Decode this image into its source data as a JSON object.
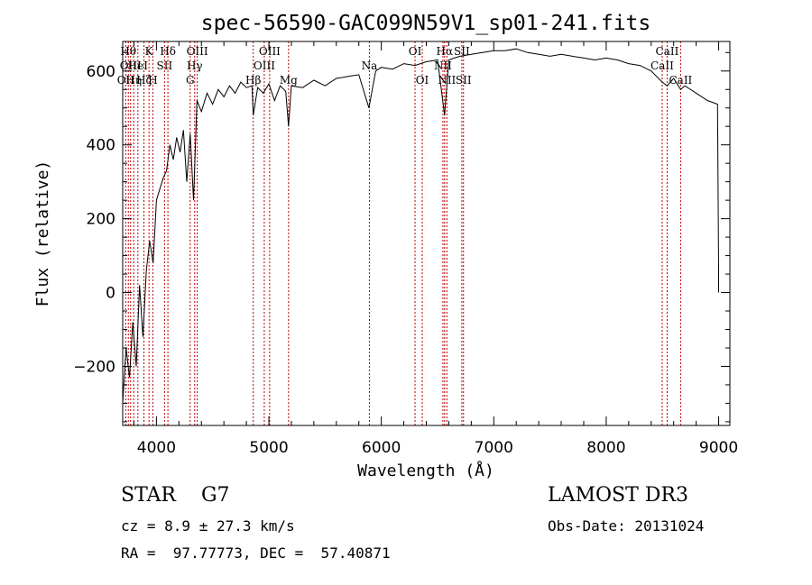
{
  "chart_data": {
    "type": "line",
    "title": "spec-56590-GAC099N59V1_sp01-241.fits",
    "xlabel": "Wavelength (Å)",
    "ylabel": "Flux (relative)",
    "xlim": [
      3700,
      9100
    ],
    "ylim": [
      -360,
      680
    ],
    "xticks": [
      4000,
      5000,
      6000,
      7000,
      8000,
      9000
    ],
    "yticks": [
      -200,
      0,
      200,
      400,
      600
    ],
    "grid": false,
    "series": [
      {
        "x": [
          3700,
          3730,
          3760,
          3790,
          3820,
          3850,
          3880,
          3910,
          3940,
          3970,
          4000,
          4030,
          4060,
          4090,
          4120,
          4150,
          4180,
          4210,
          4240,
          4270,
          4300,
          4330,
          4360,
          4400,
          4450,
          4500,
          4550,
          4600,
          4650,
          4700,
          4750,
          4800,
          4850,
          4861,
          4900,
          4950,
          5000,
          5050,
          5100,
          5150,
          5175,
          5200,
          5300,
          5400,
          5500,
          5600,
          5700,
          5800,
          5890,
          5950,
          6000,
          6100,
          6200,
          6300,
          6400,
          6500,
          6563,
          6600,
          6650,
          6700,
          6800,
          6900,
          7000,
          7100,
          7200,
          7300,
          7400,
          7500,
          7600,
          7700,
          7800,
          7900,
          8000,
          8100,
          8200,
          8300,
          8400,
          8498,
          8542,
          8600,
          8662,
          8700,
          8800,
          8900,
          8990,
          9000,
          9000
        ],
        "y": [
          -300,
          -150,
          -230,
          -80,
          -200,
          20,
          -120,
          60,
          140,
          80,
          250,
          280,
          310,
          330,
          400,
          360,
          420,
          380,
          440,
          300,
          430,
          250,
          520,
          490,
          540,
          510,
          550,
          530,
          560,
          540,
          570,
          555,
          560,
          480,
          555,
          540,
          565,
          520,
          560,
          545,
          450,
          560,
          555,
          575,
          560,
          580,
          585,
          590,
          500,
          600,
          610,
          605,
          620,
          615,
          625,
          630,
          480,
          630,
          635,
          640,
          645,
          650,
          655,
          655,
          660,
          650,
          645,
          640,
          645,
          640,
          635,
          630,
          635,
          630,
          620,
          615,
          600,
          570,
          560,
          580,
          550,
          560,
          540,
          520,
          510,
          60,
          0
        ]
      }
    ],
    "line_markers": [
      {
        "x": 3727,
        "label": "OII",
        "row": 2
      },
      {
        "x": 3750,
        "label": "Hθ",
        "row": 0
      },
      {
        "x": 3770,
        "label": "OIII",
        "row": 1
      },
      {
        "x": 3798,
        "label": "Hη",
        "row": 2
      },
      {
        "x": 3835,
        "label": "HeI",
        "row": 1
      },
      {
        "x": 3889,
        "label": "Hζ",
        "row": 2
      },
      {
        "x": 3934,
        "label": "K",
        "row": 0
      },
      {
        "x": 3969,
        "label": "H",
        "row": 2
      },
      {
        "x": 4072,
        "label": "SII",
        "row": 1
      },
      {
        "x": 4102,
        "label": "Hδ",
        "row": 0
      },
      {
        "x": 4300,
        "label": "G",
        "row": 2
      },
      {
        "x": 4340,
        "label": "Hγ",
        "row": 1
      },
      {
        "x": 4363,
        "label": "OIII",
        "row": 0
      },
      {
        "x": 4861,
        "label": "Hβ",
        "row": 2
      },
      {
        "x": 4959,
        "label": "OIII",
        "row": 1
      },
      {
        "x": 5007,
        "label": "OIII",
        "row": 0
      },
      {
        "x": 5175,
        "label": "Mg",
        "row": 2
      },
      {
        "x": 5894,
        "label": "Na",
        "row": 1
      },
      {
        "x": 6300,
        "label": "OI",
        "row": 0
      },
      {
        "x": 6364,
        "label": "OI",
        "row": 2
      },
      {
        "x": 6548,
        "label": "NII",
        "row": 1
      },
      {
        "x": 6563,
        "label": "Hα",
        "row": 0
      },
      {
        "x": 6583,
        "label": "NII",
        "row": 2
      },
      {
        "x": 6716,
        "label": "SII",
        "row": 0
      },
      {
        "x": 6731,
        "label": "SII",
        "row": 2
      },
      {
        "x": 8498,
        "label": "CaII",
        "row": 1
      },
      {
        "x": 8542,
        "label": "CaII",
        "row": 0
      },
      {
        "x": 8662,
        "label": "CaII",
        "row": 2
      }
    ]
  },
  "info": {
    "class_line": "STAR    G7",
    "survey": "LAMOST DR3",
    "cz": "cz = 8.9 ± 27.3 km/s",
    "obs_date": "Obs-Date: 20131024",
    "coords": "RA =  97.77773, DEC =  57.40871"
  }
}
